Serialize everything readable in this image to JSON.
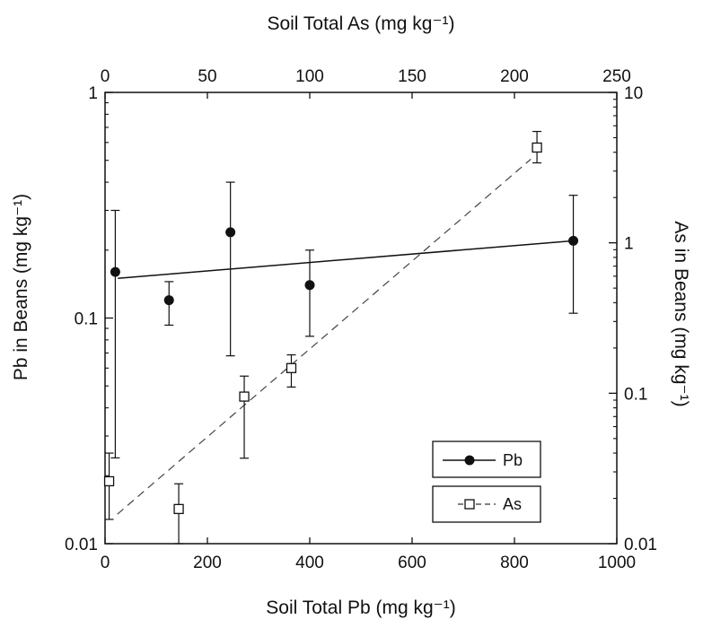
{
  "chart_data": {
    "type": "scatter",
    "title": "",
    "axes": {
      "bottom": {
        "label": "Soil Total Pb (mg kg⁻¹)",
        "range": [
          0,
          1000
        ],
        "ticks": [
          0,
          200,
          400,
          600,
          800,
          1000
        ],
        "tick_labels": [
          "0",
          "200",
          "400",
          "600",
          "800",
          "1000"
        ]
      },
      "top": {
        "label": "Soil Total As (mg kg⁻¹)",
        "range": [
          0,
          250
        ],
        "ticks": [
          0,
          50,
          100,
          150,
          200,
          250
        ],
        "tick_labels": [
          "0",
          "50",
          "100",
          "150",
          "200",
          "250"
        ]
      },
      "left": {
        "label": "Pb in Beans (mg kg⁻¹)",
        "scale": "log",
        "range": [
          0.01,
          1
        ],
        "ticks": [
          0.01,
          0.1,
          1
        ],
        "tick_labels": [
          "0.01",
          "0.1",
          "1"
        ]
      },
      "right": {
        "label": "As in Beans (mg kg⁻¹)",
        "scale": "log",
        "range": [
          0.01,
          10
        ],
        "ticks": [
          0.01,
          0.1,
          1,
          10
        ],
        "tick_labels": [
          "0.01",
          "0.1",
          "1",
          "10"
        ]
      }
    },
    "series": [
      {
        "name": "Pb",
        "marker": "filled-circle",
        "x_axis": "bottom",
        "y_axis": "left",
        "points": [
          {
            "x": 20,
            "y": 0.16,
            "err_low": 0.024,
            "err_high": 0.3
          },
          {
            "x": 125,
            "y": 0.12,
            "err_low": 0.093,
            "err_high": 0.145
          },
          {
            "x": 245,
            "y": 0.24,
            "err_low": 0.068,
            "err_high": 0.4
          },
          {
            "x": 400,
            "y": 0.14,
            "err_low": 0.083,
            "err_high": 0.2
          },
          {
            "x": 915,
            "y": 0.22,
            "err_low": 0.105,
            "err_high": 0.35
          }
        ],
        "fit": {
          "style": "solid",
          "x": [
            25,
            915
          ],
          "y": [
            0.15,
            0.22
          ]
        }
      },
      {
        "name": "As",
        "marker": "open-square",
        "x_axis": "top",
        "y_axis": "right",
        "points": [
          {
            "x": 2,
            "y": 0.026,
            "err_low": 0.0145,
            "err_high": 0.04
          },
          {
            "x": 36,
            "y": 0.017,
            "err_low": 0.01,
            "err_high": 0.025
          },
          {
            "x": 68,
            "y": 0.095,
            "err_low": 0.037,
            "err_high": 0.13
          },
          {
            "x": 91,
            "y": 0.147,
            "err_low": 0.11,
            "err_high": 0.18
          },
          {
            "x": 211,
            "y": 4.3,
            "err_low": 3.4,
            "err_high": 5.5
          }
        ],
        "fit": {
          "style": "dashed",
          "x": [
            6,
            208
          ],
          "y": [
            0.0157,
            3.6
          ]
        }
      }
    ],
    "legend": {
      "placement": "bottom-right",
      "entries": [
        "Pb",
        "As"
      ]
    },
    "grid": false
  }
}
